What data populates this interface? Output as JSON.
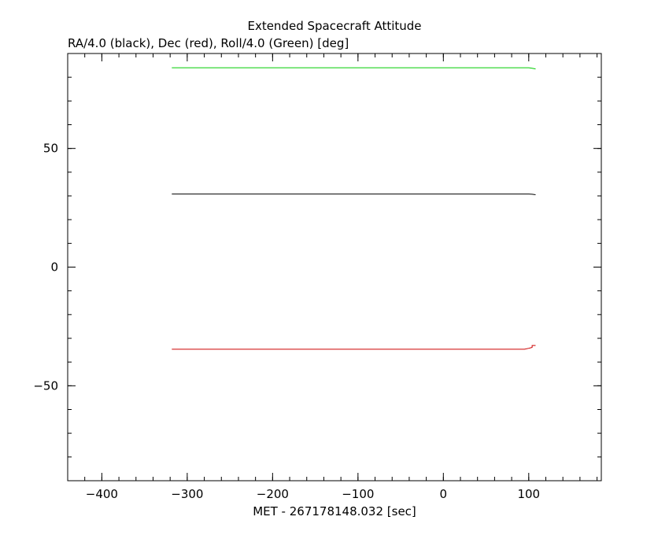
{
  "chart_data": {
    "type": "line",
    "title": "Extended Spacecraft Attitude",
    "subtitle": "RA/4.0 (black), Dec (red), Roll/4.0 (Green) [deg]",
    "xlabel": "MET - 267178148.032 [sec]",
    "ylabel": "",
    "xlim": [
      -440,
      185
    ],
    "ylim": [
      -90,
      90
    ],
    "x_ticks": [
      -400,
      -300,
      -200,
      -100,
      0,
      100
    ],
    "x_tick_labels": [
      "−400",
      "−300",
      "−200",
      "−100",
      "0",
      "100"
    ],
    "y_ticks": [
      -50,
      0,
      50
    ],
    "y_tick_labels": [
      "−50",
      "0",
      "50"
    ],
    "x_minor_step": 20,
    "y_minor_step": 10,
    "grid": false,
    "series": [
      {
        "color": "#00cc00",
        "x": [
          -318,
          0,
          100,
          104,
          108
        ],
        "y": [
          84.0,
          84.0,
          84.0,
          83.8,
          83.5
        ]
      },
      {
        "color": "#000000",
        "x": [
          -318,
          0,
          100,
          104,
          108
        ],
        "y": [
          30.8,
          30.8,
          30.8,
          30.7,
          30.5
        ]
      },
      {
        "color": "#cc0000",
        "x": [
          -318,
          0,
          95,
          100,
          102,
          104,
          104,
          108
        ],
        "y": [
          -34.6,
          -34.6,
          -34.6,
          -34.2,
          -34.0,
          -33.8,
          -33.0,
          -33.0
        ]
      }
    ]
  }
}
